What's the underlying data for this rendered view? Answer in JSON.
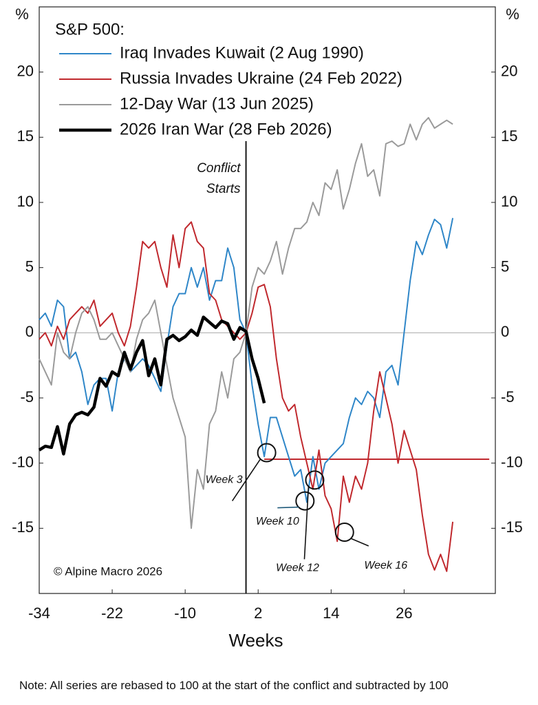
{
  "chart_data": {
    "type": "line",
    "legend_title": "S&P 500:",
    "x_label": "Weeks",
    "y_unit": "%",
    "note": "Note: All series are rebased to 100 at the start of the conflict and subtracted by 100",
    "copyright": "© Alpine Macro 2026",
    "event_x": 0,
    "event_label": [
      "Conflict",
      "Starts"
    ],
    "reference_line": {
      "value": -9.7,
      "x": [
        3,
        40
      ],
      "color": "#c0282d"
    },
    "annotations": [
      {
        "text": "Week 3",
        "x": 3.4,
        "y": -9.2
      },
      {
        "text": "Week 10",
        "x": 9.7,
        "y": -12.9
      },
      {
        "text": "Week 12",
        "x": 11.3,
        "y": -11.3
      },
      {
        "text": "Week 16",
        "x": 16.2,
        "y": -15.3
      }
    ],
    "xlim": [
      -34,
      41
    ],
    "xticks": [
      -34,
      -22,
      -10,
      2,
      14,
      26
    ],
    "ylim": [
      -20,
      25
    ],
    "yticks": [
      -15,
      -10,
      -5,
      0,
      5,
      10,
      15,
      20
    ],
    "x": [
      -34,
      -33,
      -32,
      -31,
      -30,
      -29,
      -28,
      -27,
      -26,
      -25,
      -24,
      -23,
      -22,
      -21,
      -20,
      -19,
      -18,
      -17,
      -16,
      -15,
      -14,
      -13,
      -12,
      -11,
      -10,
      -9,
      -8,
      -7,
      -6,
      -5,
      -4,
      -3,
      -2,
      -1,
      0,
      1,
      2,
      3,
      4,
      5,
      6,
      7,
      8,
      9,
      10,
      11,
      12,
      13,
      14,
      15,
      16,
      17,
      18,
      19,
      20,
      21,
      22,
      23,
      24,
      25,
      26,
      27,
      28,
      29,
      30,
      31,
      32,
      33,
      34
    ],
    "series": [
      {
        "name": "Iraq Invades Kuwait (2 Aug 1990)",
        "color": "#2e86c8",
        "width": 2,
        "values": [
          1,
          1.5,
          0.5,
          2.5,
          2,
          -2,
          -1.5,
          -3,
          -5.5,
          -4,
          -3.5,
          -3.5,
          -6,
          -3,
          -2,
          -3,
          -2.5,
          -2,
          -2.5,
          -3.5,
          -4.5,
          -1,
          2,
          3,
          3,
          5,
          3.5,
          5,
          2.5,
          4,
          4,
          6.5,
          5,
          1,
          0,
          -4,
          -7,
          -9.5,
          -6.5,
          -6.5,
          -8,
          -9.5,
          -11,
          -10.5,
          -13,
          -9.5,
          -12,
          -10,
          -9.5,
          -9,
          -8.5,
          -6.5,
          -5,
          -5.5,
          -4.5,
          -5,
          -6.5,
          -3,
          -2.5,
          -4,
          0,
          4,
          7,
          6,
          7.5,
          8.7,
          8.3,
          6.5,
          8.8
        ]
      },
      {
        "name": "Russia Invades Ukraine (24 Feb 2022)",
        "color": "#c0282d",
        "width": 2,
        "values": [
          -0.5,
          0,
          -1,
          0.5,
          -0.5,
          1,
          1.5,
          2,
          1.5,
          2.5,
          0.5,
          1,
          1.5,
          0,
          -1,
          0.5,
          3.5,
          7,
          6.5,
          7,
          5,
          3.5,
          7.5,
          5,
          8,
          8.5,
          7,
          6.5,
          3,
          2.5,
          1,
          0.5,
          0,
          -0.5,
          0,
          1.5,
          3.5,
          3.7,
          2,
          -2,
          -5,
          -6,
          -5.5,
          -8,
          -10,
          -12,
          -9,
          -12.5,
          -13.5,
          -16,
          -11,
          -13,
          -11,
          -12,
          -10,
          -6,
          -3,
          -5,
          -7,
          -10,
          -7.5,
          -9,
          -10.5,
          -14,
          -17,
          -18.2,
          -17,
          -18.3,
          -14.5
        ]
      },
      {
        "name": "12-Day War (13 Jun 2025)",
        "color": "#9a9a9a",
        "width": 2,
        "values": [
          -2,
          -3,
          -4,
          0,
          -1.5,
          -2,
          0,
          1.5,
          2,
          1,
          -0.5,
          -0.5,
          0,
          -1,
          -2,
          -3,
          -0.5,
          1,
          1.5,
          2.5,
          0,
          -2.5,
          -5,
          -6.5,
          -8,
          -15,
          -10.5,
          -12,
          -7,
          -6,
          -3,
          -5,
          -2,
          -1.5,
          0,
          3.5,
          5,
          4.5,
          5.5,
          7,
          4.5,
          6.5,
          8,
          8,
          8.5,
          10,
          9,
          11.5,
          11,
          12.5,
          9.5,
          11,
          13,
          14.5,
          12,
          12.5,
          10.5,
          14.5,
          14.7,
          14.3,
          14.5,
          16,
          14.8,
          16,
          16.5,
          15.7,
          16,
          16.3,
          16
        ]
      },
      {
        "name": "2026 Iran War (28 Feb 2026)",
        "color": "#000000",
        "width": 4.5,
        "values": [
          -9,
          -8.7,
          -8.8,
          -7.2,
          -9.3,
          -7,
          -6.3,
          -6.1,
          -6.3,
          -5.7,
          -3.5,
          -4.1,
          -3,
          -3.3,
          -1.5,
          -2.8,
          -1.5,
          -0.6,
          -3.3,
          -2,
          -4,
          -0.5,
          -0.2,
          -0.6,
          -0.3,
          0.2,
          -0.2,
          1.2,
          0.8,
          0.4,
          0.9,
          0.7,
          -0.5,
          0.4,
          0.1,
          -2,
          -3.5,
          -5.4,
          null,
          null,
          null,
          null,
          null,
          null,
          null,
          null,
          null,
          null,
          null,
          null,
          null,
          null,
          null,
          null,
          null,
          null,
          null,
          null,
          null,
          null,
          null,
          null,
          null,
          null,
          null,
          null,
          null,
          null,
          null
        ]
      }
    ]
  }
}
